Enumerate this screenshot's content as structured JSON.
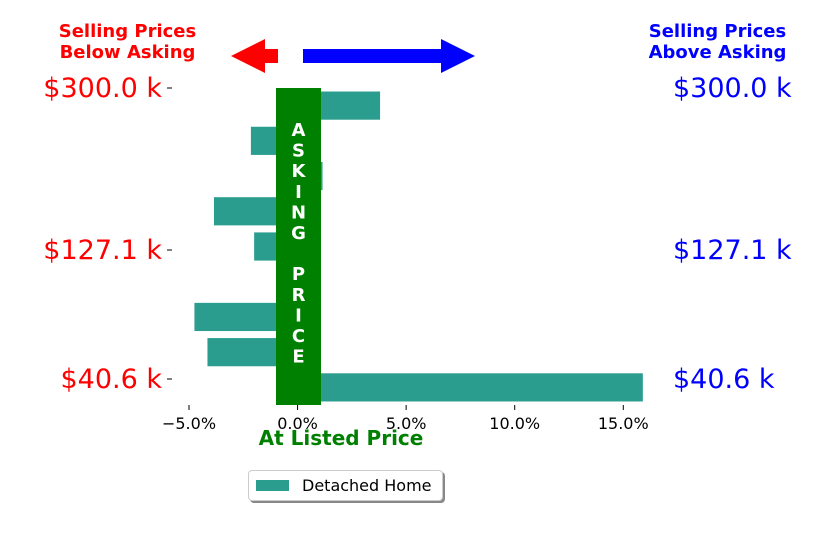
{
  "header": {
    "left_line1": "Selling Prices",
    "left_line2": "Below Asking",
    "right_line1": "Selling Prices",
    "right_line2": "Above Asking"
  },
  "colors": {
    "below": "#ff0000",
    "above": "#0000ff",
    "bar": "#2a9d8f",
    "asking": "#008000"
  },
  "asking_label": [
    "A",
    "S",
    "K",
    "I",
    "N",
    "G",
    "",
    "P",
    "R",
    "I",
    "C",
    "E"
  ],
  "xlabel": "At Listed Price",
  "legend": {
    "label": "Detached Home"
  },
  "chart_data": {
    "type": "bar",
    "orientation": "horizontal",
    "title": "",
    "xlabel": "At Listed Price",
    "ylabel": "",
    "xlim": [
      -5.0,
      16.0
    ],
    "x_ticks": [
      -5.0,
      0.0,
      5.0,
      10.0,
      15.0
    ],
    "x_tick_labels": [
      "−5.0%",
      "0.0%",
      "5.0%",
      "10.0%",
      "15.0%"
    ],
    "y_ticks_left": [
      "$300.0 k",
      "$127.1 k",
      "$40.6 k"
    ],
    "y_ticks_right": [
      "$300.0 k",
      "$127.1 k",
      "$40.6 k"
    ],
    "series": [
      {
        "name": "Detached Home",
        "values": [
          15.9,
          -4.15,
          -4.75,
          1.05,
          -2.0,
          -3.85,
          1.15,
          -2.15,
          3.8
        ]
      }
    ],
    "grid": false,
    "legend_position": "bottom"
  }
}
